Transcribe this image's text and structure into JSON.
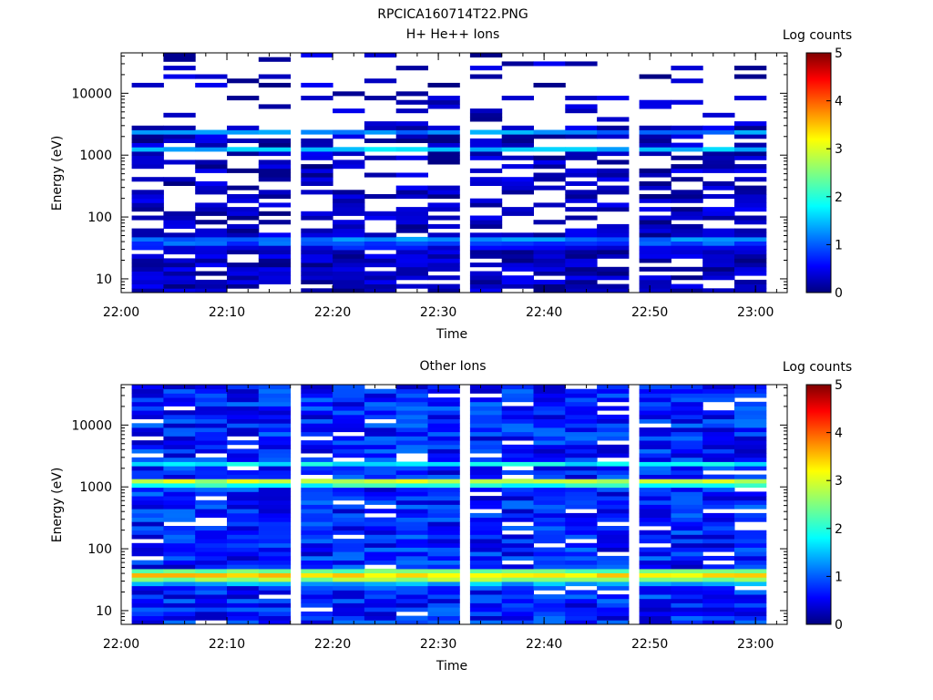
{
  "figure": {
    "title": "RPCICA160714T22.PNG"
  },
  "colormap": "jet",
  "chart_data": [
    {
      "type": "heatmap",
      "title": "H+ He++ Ions",
      "xlabel": "Time",
      "ylabel": "Energy (eV)",
      "x_tick_labels": [
        "22:00",
        "22:10",
        "22:20",
        "22:30",
        "22:40",
        "22:50",
        "23:00"
      ],
      "x_range": [
        "22:00",
        "23:03"
      ],
      "y_tick_labels": [
        "10",
        "100",
        "1000",
        "10000"
      ],
      "y_range": [
        6,
        45000
      ],
      "y_scale": "log",
      "colorbar": {
        "label": "Log counts",
        "ticks": [
          "0",
          "1",
          "2",
          "3",
          "4",
          "5"
        ],
        "range": [
          0,
          5
        ]
      },
      "time_bins_start": [
        "22:01",
        "22:04",
        "22:07",
        "22:10",
        "22:13",
        "22:17",
        "22:20",
        "22:23",
        "22:26",
        "22:29",
        "22:33",
        "22:36",
        "22:39",
        "22:42",
        "22:45",
        "22:49",
        "22:52",
        "22:55",
        "22:58"
      ],
      "bands": [
        {
          "e_lo": 2200,
          "e_hi": 2700,
          "level": 1.3
        },
        {
          "e_lo": 1100,
          "e_hi": 1300,
          "level": 1.6
        },
        {
          "e_lo": 40,
          "e_hi": 47,
          "level": 1.2
        },
        {
          "e_lo": 33,
          "e_hi": 40,
          "level": 1.0
        },
        {
          "e_lo": 28,
          "e_hi": 33,
          "level": 0.6
        }
      ],
      "sparse_level_range": [
        0,
        0.6
      ],
      "fill_fraction_high": 0.18,
      "fill_fraction_mid": 0.55,
      "fill_fraction_low": 0.8
    },
    {
      "type": "heatmap",
      "title": "Other Ions",
      "xlabel": "Time",
      "ylabel": "Energy (eV)",
      "x_tick_labels": [
        "22:00",
        "22:10",
        "22:20",
        "22:30",
        "22:40",
        "22:50",
        "23:00"
      ],
      "x_range": [
        "22:00",
        "23:03"
      ],
      "y_tick_labels": [
        "10",
        "100",
        "1000",
        "10000"
      ],
      "y_range": [
        6,
        45000
      ],
      "y_scale": "log",
      "colorbar": {
        "label": "Log counts",
        "ticks": [
          "0",
          "1",
          "2",
          "3",
          "4",
          "5"
        ],
        "range": [
          0,
          5
        ]
      },
      "time_bins_start": [
        "22:01",
        "22:04",
        "22:07",
        "22:10",
        "22:13",
        "22:17",
        "22:20",
        "22:23",
        "22:26",
        "22:29",
        "22:33",
        "22:36",
        "22:39",
        "22:42",
        "22:45",
        "22:49",
        "22:52",
        "22:55",
        "22:58"
      ],
      "bands": [
        {
          "e_lo": 2200,
          "e_hi": 2700,
          "level": 1.8
        },
        {
          "e_lo": 1100,
          "e_hi": 1350,
          "level": 2.8
        },
        {
          "e_lo": 950,
          "e_hi": 1100,
          "level": 2.0
        },
        {
          "e_lo": 42,
          "e_hi": 48,
          "level": 2.3
        },
        {
          "e_lo": 35,
          "e_hi": 42,
          "level": 3.3
        },
        {
          "e_lo": 30,
          "e_hi": 35,
          "level": 2.6
        },
        {
          "e_lo": 26,
          "e_hi": 30,
          "level": 1.5
        }
      ],
      "background_level_range": [
        0.3,
        1.2
      ],
      "fill_fraction_high": 0.9,
      "fill_fraction_mid": 0.92,
      "fill_fraction_low": 0.95
    }
  ]
}
